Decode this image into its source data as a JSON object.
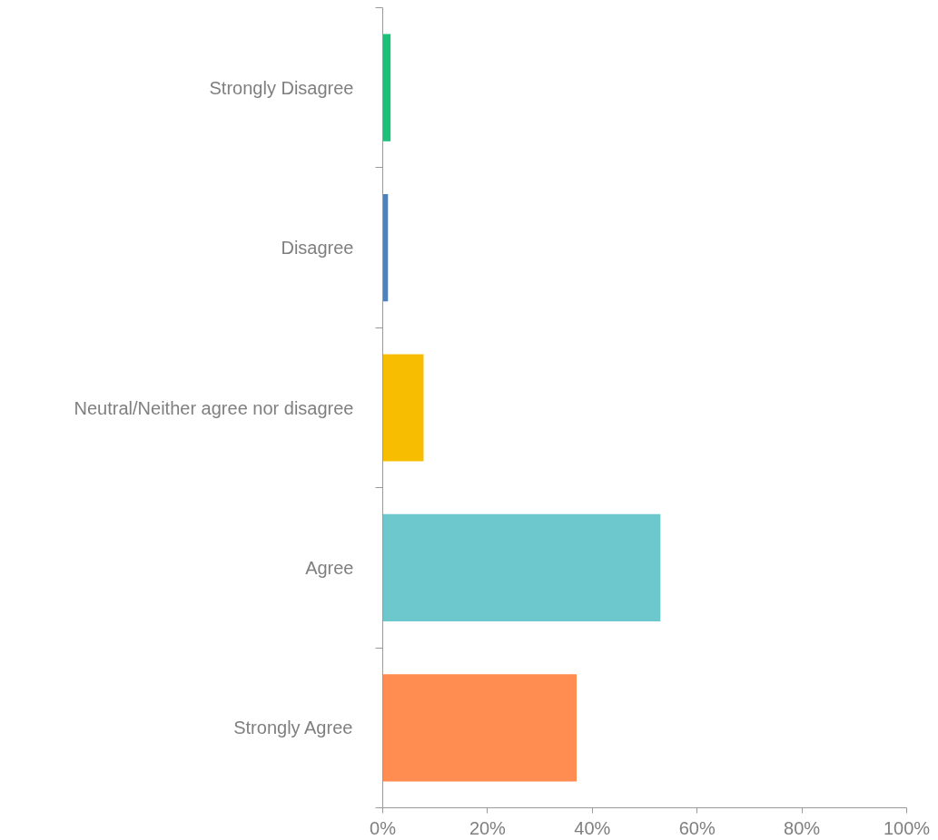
{
  "chart_data": {
    "type": "bar",
    "orientation": "horizontal",
    "categories": [
      "Strongly Disagree",
      "Disagree",
      "Neutral/Neither agree nor disagree",
      "Agree",
      "Strongly Agree"
    ],
    "values": [
      1.5,
      1,
      7.8,
      53,
      37
    ],
    "colors": [
      "#1dbf7a",
      "#4f81bd",
      "#f7bd00",
      "#6cc8cc",
      "#ff8c50"
    ],
    "xlim": [
      0,
      100
    ],
    "xticks": [
      {
        "value": 0,
        "label": "0%"
      },
      {
        "value": 20,
        "label": "20%"
      },
      {
        "value": 40,
        "label": "40%"
      },
      {
        "value": 60,
        "label": "60%"
      },
      {
        "value": 80,
        "label": "80%"
      },
      {
        "value": 100,
        "label": "100%"
      }
    ],
    "grid": false
  }
}
